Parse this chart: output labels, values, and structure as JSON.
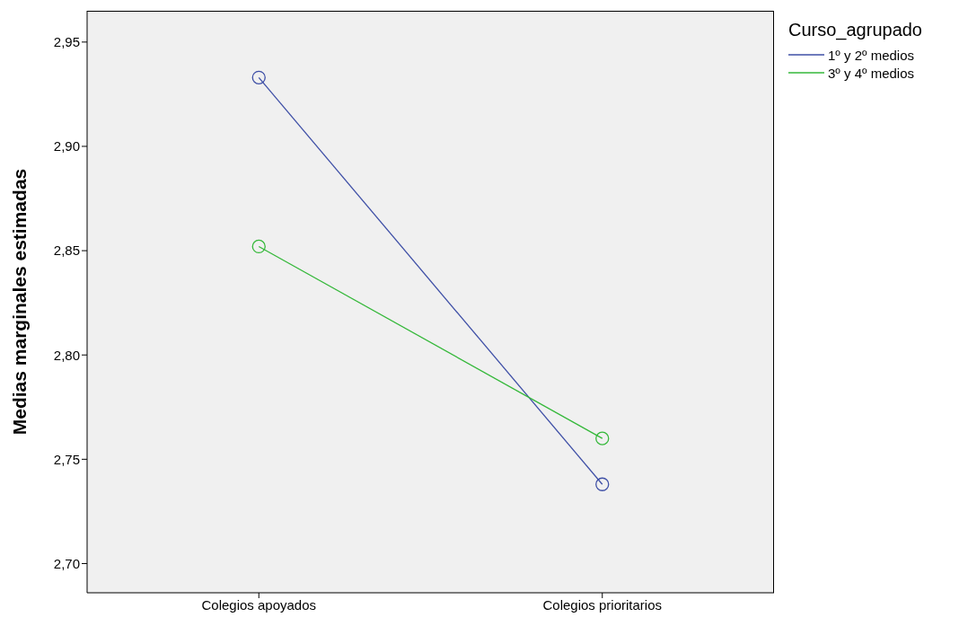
{
  "chart_data": {
    "type": "line",
    "ylabel": "Medias marginales estimadas",
    "legend_title": "Curso_agrupado",
    "legend": "top right",
    "marker": "circle",
    "categories": [
      "Colegios apoyados",
      "Colegios prioritarios"
    ],
    "series": [
      {
        "name": "1º y 2º medios",
        "color": "#3e4fa6",
        "values": [
          2.933,
          2.738
        ]
      },
      {
        "name": "3º y 4º medios",
        "color": "#35b83a",
        "values": [
          2.852,
          2.76
        ]
      }
    ],
    "ylim": [
      2.686,
      2.965
    ],
    "yticks": [
      {
        "value": 2.7,
        "label": "2,70"
      },
      {
        "value": 2.75,
        "label": "2,75"
      },
      {
        "value": 2.8,
        "label": "2,80"
      },
      {
        "value": 2.85,
        "label": "2,85"
      },
      {
        "value": 2.9,
        "label": "2,90"
      },
      {
        "value": 2.95,
        "label": "2,95"
      }
    ]
  }
}
